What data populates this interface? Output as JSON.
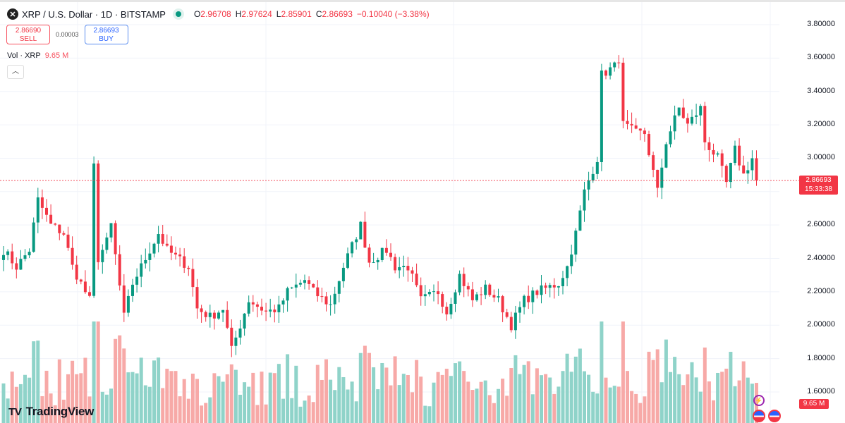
{
  "header": {
    "symbol_icon": "x-icon",
    "title": "XRP / U.S. Dollar · 1D · BITSTAMP",
    "ohlc": {
      "o_label": "O",
      "o": "2.96708",
      "h_label": "H",
      "h": "2.97624",
      "l_label": "L",
      "l": "2.85901",
      "c_label": "C",
      "c": "2.86693",
      "change": "−0.10040 (−3.38%)"
    }
  },
  "trade": {
    "sell_price": "2.86690",
    "sell_label": "SELL",
    "spread": "0.00003",
    "buy_price": "2.86693",
    "buy_label": "BUY"
  },
  "volume": {
    "label": "Vol · XRP",
    "value": "9.65 M"
  },
  "price_axis": {
    "labels": [
      "3.80000",
      "3.60000",
      "3.40000",
      "3.20000",
      "3.00000",
      "2.60000",
      "2.40000",
      "2.20000",
      "2.00000",
      "1.80000",
      "1.60000"
    ]
  },
  "last_price": {
    "price": "2.86693",
    "countdown": "15:33:38"
  },
  "volume_tag": "9.65 M",
  "logo": {
    "text": "TradingView",
    "mark": "17"
  },
  "colors": {
    "up": "#089981",
    "down": "#f23645",
    "vol_up": "#8fd3c9",
    "vol_down": "#f7a9a7"
  },
  "chart_data": {
    "type": "candlestick",
    "candles": 176,
    "ylim": [
      1.6,
      3.8
    ],
    "close_waypoints": [
      [
        0,
        2.45
      ],
      [
        3,
        2.35
      ],
      [
        6,
        2.45
      ],
      [
        8,
        2.75
      ],
      [
        11,
        2.6
      ],
      [
        14,
        2.55
      ],
      [
        16,
        2.35
      ],
      [
        19,
        2.2
      ],
      [
        20,
        2.15
      ],
      [
        21,
        2.95
      ],
      [
        22,
        2.4
      ],
      [
        24,
        2.5
      ],
      [
        25,
        2.6
      ],
      [
        28,
        2.05
      ],
      [
        30,
        2.25
      ],
      [
        33,
        2.4
      ],
      [
        36,
        2.55
      ],
      [
        38,
        2.45
      ],
      [
        43,
        2.35
      ],
      [
        45,
        2.1
      ],
      [
        48,
        2.05
      ],
      [
        51,
        2.1
      ],
      [
        53,
        1.85
      ],
      [
        55,
        2.0
      ],
      [
        57,
        2.15
      ],
      [
        61,
        2.08
      ],
      [
        64,
        2.1
      ],
      [
        66,
        2.2
      ],
      [
        70,
        2.27
      ],
      [
        72,
        2.2
      ],
      [
        76,
        2.12
      ],
      [
        79,
        2.35
      ],
      [
        83,
        2.6
      ],
      [
        85,
        2.38
      ],
      [
        89,
        2.45
      ],
      [
        91,
        2.35
      ],
      [
        94,
        2.35
      ],
      [
        97,
        2.15
      ],
      [
        101,
        2.2
      ],
      [
        103,
        2.08
      ],
      [
        106,
        2.3
      ],
      [
        109,
        2.15
      ],
      [
        112,
        2.22
      ],
      [
        115,
        2.15
      ],
      [
        118,
        2.0
      ],
      [
        121,
        2.15
      ],
      [
        124,
        2.2
      ],
      [
        129,
        2.25
      ],
      [
        131,
        2.35
      ],
      [
        133,
        2.55
      ],
      [
        135,
        2.8
      ],
      [
        138,
        3.0
      ],
      [
        139,
        3.5
      ],
      [
        142,
        3.55
      ],
      [
        143,
        3.6
      ],
      [
        144,
        3.2
      ],
      [
        147,
        3.15
      ],
      [
        149,
        3.15
      ],
      [
        152,
        2.8
      ],
      [
        154,
        3.1
      ],
      [
        157,
        3.3
      ],
      [
        159,
        3.2
      ],
      [
        162,
        3.3
      ],
      [
        163,
        3.1
      ],
      [
        166,
        3.0
      ],
      [
        168,
        2.85
      ],
      [
        170,
        3.05
      ],
      [
        172,
        2.9
      ],
      [
        174,
        3.0
      ],
      [
        175,
        2.87
      ]
    ],
    "volume_max_M": 60
  }
}
